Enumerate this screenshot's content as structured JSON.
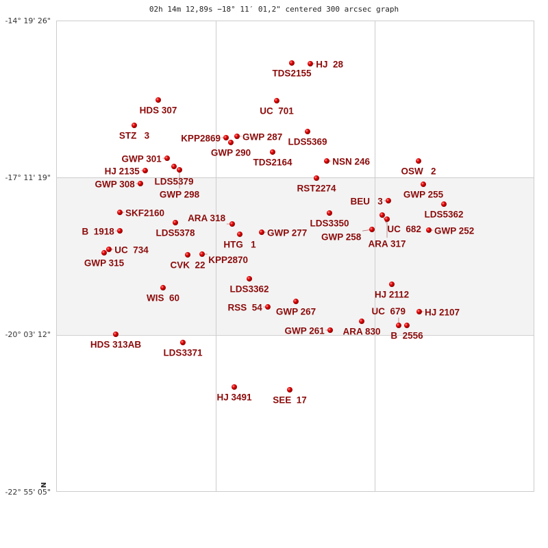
{
  "chart_data": {
    "type": "scatter",
    "title": "02h 14m 12,89s −18° 11′ 01,2\" centered 300 arcsec graph",
    "north_label": "N",
    "y_tick_labels": [
      "-14° 19' 26\"",
      "-17° 11' 19\"",
      "-20° 03' 12\"",
      "-22° 55' 05\""
    ],
    "y_ticks": [
      -14.3239,
      -17.1886,
      -20.0533,
      -22.9181
    ],
    "ylim": [
      -22.9181,
      -14.3239
    ],
    "xlim": [
      0,
      100
    ],
    "grid": true,
    "shaded_band": [
      -20.0533,
      -17.1886
    ],
    "colors": {
      "point": "#cc0000",
      "label": "#8b0a0a",
      "band": "#f3f3f3",
      "grid": "#cccccc"
    },
    "points": [
      {
        "label": "TDS2155",
        "x": 49.28,
        "dec": -15.098
      },
      {
        "label": "HJ  28",
        "x": 53.15,
        "dec": -15.111
      },
      {
        "label": "HDS 307",
        "x": 21.35,
        "dec": -15.773
      },
      {
        "label": "UC  701",
        "x": 46.13,
        "dec": -15.786
      },
      {
        "label": "STZ   3",
        "x": 16.33,
        "dec": -16.235
      },
      {
        "label": "LDS5369",
        "x": 52.58,
        "dec": -16.348
      },
      {
        "label": "KPP2869",
        "x": 35.53,
        "dec": -16.46
      },
      {
        "label": "GWP 287",
        "x": 37.82,
        "dec": -16.435
      },
      {
        "label": "GWP 290",
        "x": 36.53,
        "dec": -16.547
      },
      {
        "label": "TDS2164",
        "x": 45.27,
        "dec": -16.722
      },
      {
        "label": "NSN 246",
        "x": 56.59,
        "dec": -16.885
      },
      {
        "label": "OSW   2",
        "x": 75.79,
        "dec": -16.885
      },
      {
        "label": "GWP 301",
        "x": 23.21,
        "dec": -16.835
      },
      {
        "label": "HJ 2135",
        "x": 18.62,
        "dec": -17.06
      },
      {
        "label": "LDS5379",
        "x": 24.64,
        "dec": -16.985
      },
      {
        "label": "GWP 298",
        "x": 25.79,
        "dec": -17.047
      },
      {
        "label": "GWP 308",
        "x": 17.62,
        "dec": -17.297
      },
      {
        "label": "RST2274",
        "x": 54.44,
        "dec": -17.197
      },
      {
        "label": "GWP 255",
        "x": 76.79,
        "dec": -17.31
      },
      {
        "label": "BEU   3",
        "x": 69.48,
        "dec": -17.609
      },
      {
        "label": "LDS5362",
        "x": 81.09,
        "dec": -17.672
      },
      {
        "label": "SKF2160",
        "x": 13.32,
        "dec": -17.822
      },
      {
        "label": "LDS3350",
        "x": 57.16,
        "dec": -17.834
      },
      {
        "label": "UC  682",
        "x": 68.19,
        "dec": -17.871
      },
      {
        "label": "ARA 317",
        "x": 69.2,
        "dec": -17.946
      },
      {
        "label": "LDS5378",
        "x": 24.93,
        "dec": -18.009
      },
      {
        "label": "ARA 318",
        "x": 36.82,
        "dec": -18.034
      },
      {
        "label": "B  1918",
        "x": 13.32,
        "dec": -18.159
      },
      {
        "label": "GWP 277",
        "x": 42.98,
        "dec": -18.184
      },
      {
        "label": "HTG   1",
        "x": 38.4,
        "dec": -18.221
      },
      {
        "label": "GWP 258",
        "x": 66.05,
        "dec": -18.134
      },
      {
        "label": "GWP 252",
        "x": 77.94,
        "dec": -18.146
      },
      {
        "label": "UC  734",
        "x": 11.03,
        "dec": -18.496
      },
      {
        "label": "GWP 315",
        "x": 10.03,
        "dec": -18.559
      },
      {
        "label": "CVK  22",
        "x": 27.51,
        "dec": -18.596
      },
      {
        "label": "KPP2870",
        "x": 30.52,
        "dec": -18.584
      },
      {
        "label": "LDS3362",
        "x": 40.4,
        "dec": -19.033
      },
      {
        "label": "HJ 2112",
        "x": 70.2,
        "dec": -19.133
      },
      {
        "label": "WIS  60",
        "x": 22.35,
        "dec": -19.196
      },
      {
        "label": "GWP 267",
        "x": 50.14,
        "dec": -19.446
      },
      {
        "label": "RSS  54",
        "x": 44.27,
        "dec": -19.546
      },
      {
        "label": "HJ 2107",
        "x": 75.93,
        "dec": -19.633
      },
      {
        "label": "ARA 830",
        "x": 63.9,
        "dec": -19.808
      },
      {
        "label": "UC  679",
        "x": 71.63,
        "dec": -19.883
      },
      {
        "label": "B  2556",
        "x": 73.35,
        "dec": -19.883
      },
      {
        "label": "GWP 261",
        "x": 57.31,
        "dec": -19.97
      },
      {
        "label": "HDS 313AB",
        "x": 12.46,
        "dec": -20.045
      },
      {
        "label": "LDS3371",
        "x": 26.5,
        "dec": -20.195
      },
      {
        "label": "HJ 3491",
        "x": 37.25,
        "dec": -21.007
      },
      {
        "label": "SEE  17",
        "x": 48.85,
        "dec": -21.057
      }
    ]
  }
}
